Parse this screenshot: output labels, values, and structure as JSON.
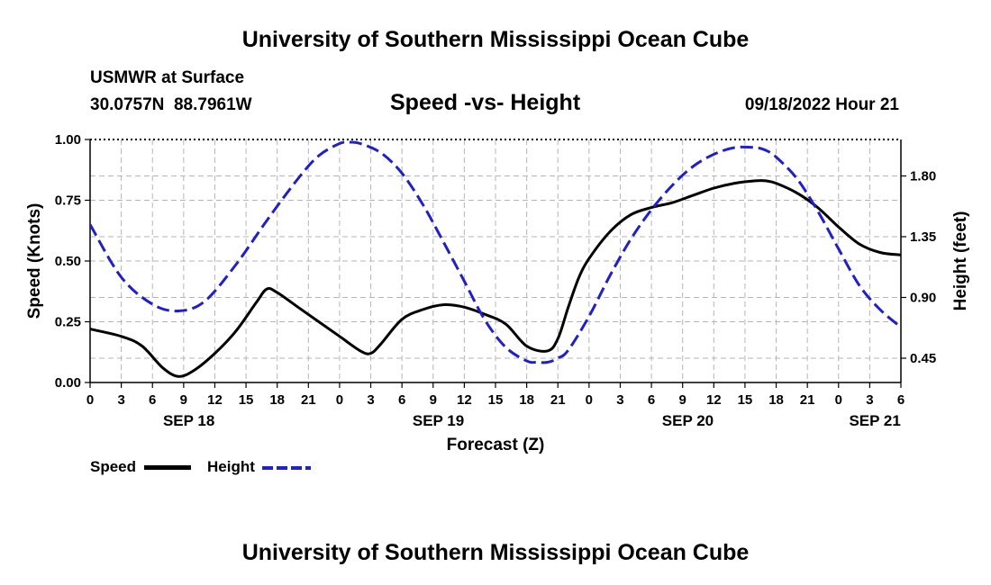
{
  "header": {
    "title": "University of Southern Mississippi Ocean Cube",
    "station": "USMWR at Surface",
    "coords": "30.0757N  88.7961W",
    "datetime": "09/18/2022 Hour 21",
    "footer_title": "University of Southern Mississippi Ocean Cube"
  },
  "chart_data": {
    "type": "line",
    "title": "Speed -vs- Height",
    "xlabel": "Forecast (Z)",
    "ylabel": "Speed (Knots)",
    "y2label": "Height (feet)",
    "x_range_hours": [
      0,
      78
    ],
    "ylim": [
      0,
      1
    ],
    "y2lim": [
      0.27,
      2.07
    ],
    "xtick_hours": [
      0,
      3,
      6,
      9,
      12,
      15,
      18,
      21,
      24,
      27,
      30,
      33,
      36,
      39,
      42,
      45,
      48,
      51,
      54,
      57,
      60,
      63,
      66,
      69,
      72,
      75,
      78
    ],
    "xtick_labels": [
      "0",
      "3",
      "6",
      "9",
      "12",
      "15",
      "18",
      "21",
      "0",
      "3",
      "6",
      "9",
      "12",
      "15",
      "18",
      "21",
      "0",
      "3",
      "6",
      "9",
      "12",
      "15",
      "18",
      "21",
      "0",
      "3",
      "6"
    ],
    "date_labels": [
      {
        "label": "SEP 18",
        "hour": 9.5
      },
      {
        "label": "SEP 19",
        "hour": 33.5
      },
      {
        "label": "SEP 20",
        "hour": 57.5
      },
      {
        "label": "SEP 21",
        "hour": 75.5
      }
    ],
    "yticks": [
      0.0,
      0.25,
      0.5,
      0.75,
      1.0
    ],
    "ytick_labels": [
      "0.00",
      "0.25",
      "0.50",
      "0.75",
      "1.00"
    ],
    "y2ticks": [
      0.45,
      0.9,
      1.35,
      1.8
    ],
    "y2tick_labels": [
      "0.45",
      "0.90",
      "1.35",
      "1.80"
    ],
    "grid": true,
    "series": [
      {
        "name": "Speed",
        "axis": "left",
        "color": "#000000",
        "style": "solid",
        "x": [
          0,
          3,
          5,
          7,
          8.5,
          10,
          12,
          14,
          16,
          17,
          18,
          20,
          22,
          24,
          26,
          27,
          28,
          30,
          32,
          34,
          36,
          38,
          40,
          42,
          44,
          45,
          46,
          47,
          48,
          50,
          52,
          54,
          56,
          58,
          60,
          62,
          64,
          65,
          66,
          68,
          70,
          72,
          74,
          76,
          78
        ],
        "values": [
          0.22,
          0.19,
          0.15,
          0.06,
          0.025,
          0.05,
          0.12,
          0.21,
          0.33,
          0.385,
          0.37,
          0.31,
          0.25,
          0.19,
          0.13,
          0.12,
          0.16,
          0.26,
          0.3,
          0.32,
          0.31,
          0.28,
          0.24,
          0.15,
          0.13,
          0.18,
          0.31,
          0.43,
          0.51,
          0.62,
          0.69,
          0.72,
          0.74,
          0.77,
          0.8,
          0.82,
          0.83,
          0.83,
          0.82,
          0.78,
          0.72,
          0.64,
          0.57,
          0.535,
          0.525
        ]
      },
      {
        "name": "Height",
        "axis": "right",
        "color": "#1f1fcc",
        "style": "dashed",
        "x": [
          0,
          3,
          6,
          8.5,
          11,
          14,
          17,
          20,
          22,
          24,
          25,
          26,
          28,
          30,
          32,
          34,
          36,
          38,
          40,
          42,
          43,
          44,
          45,
          46,
          48,
          50,
          52,
          54,
          56,
          58,
          60,
          62,
          64,
          65,
          66,
          68,
          70,
          72,
          74,
          76,
          78
        ],
        "values": [
          1.44,
          1.05,
          0.85,
          0.8,
          0.87,
          1.14,
          1.47,
          1.78,
          1.95,
          2.04,
          2.05,
          2.04,
          1.97,
          1.82,
          1.59,
          1.31,
          1.02,
          0.73,
          0.53,
          0.43,
          0.42,
          0.42,
          0.45,
          0.51,
          0.76,
          1.06,
          1.33,
          1.55,
          1.73,
          1.87,
          1.96,
          2.01,
          2.01,
          1.99,
          1.94,
          1.78,
          1.54,
          1.26,
          0.99,
          0.81,
          0.68
        ]
      }
    ],
    "legend": [
      {
        "label": "Speed",
        "color": "#000000",
        "style": "solid"
      },
      {
        "label": "Height",
        "color": "#1f1fcc",
        "style": "dashed"
      }
    ]
  }
}
